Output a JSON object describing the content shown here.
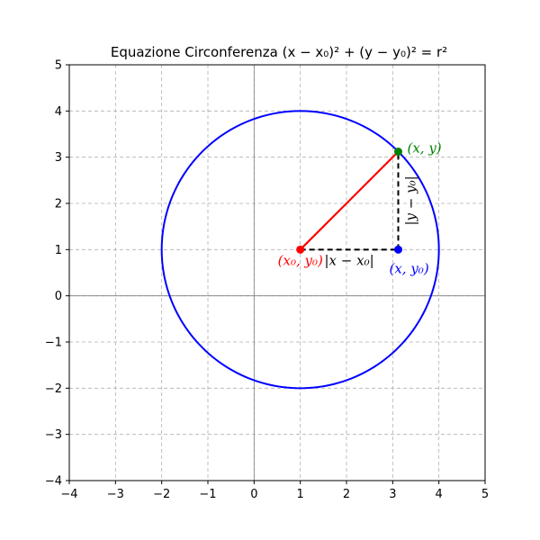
{
  "chart_data": {
    "type": "line",
    "title": "Equazione Circonferenza (x − x₀)² + (y − y₀)² = r²",
    "xlabel": "",
    "ylabel": "",
    "xlim": [
      -4,
      5
    ],
    "ylim": [
      -4,
      5
    ],
    "xticks": [
      -4,
      -3,
      -2,
      -1,
      0,
      1,
      2,
      3,
      4,
      5
    ],
    "yticks": [
      -4,
      -3,
      -2,
      -1,
      0,
      1,
      2,
      3,
      4,
      5
    ],
    "xtick_labels": [
      "−4",
      "−3",
      "−2",
      "−1",
      "0",
      "1",
      "2",
      "3",
      "4",
      "5"
    ],
    "ytick_labels": [
      "−4",
      "−3",
      "−2",
      "−1",
      "0",
      "1",
      "2",
      "3",
      "4",
      "5"
    ],
    "grid": true,
    "grid_style": "dashed",
    "circle": {
      "center": [
        1,
        1
      ],
      "radius": 3,
      "color": "#0000ff"
    },
    "center_point": {
      "x": 1,
      "y": 1,
      "label": "(x₀, y₀)",
      "color": "#ff0000"
    },
    "circle_point": {
      "x": 3.12,
      "y": 3.12,
      "label": "(x, y)",
      "color": "#008000"
    },
    "foot_point": {
      "x": 3.12,
      "y": 1,
      "label": "(x, y₀)",
      "color": "#0000ff"
    },
    "radius_segment": {
      "from": [
        1,
        1
      ],
      "to": [
        3.12,
        3.12
      ],
      "color": "#ff0000"
    },
    "horizontal_leg": {
      "from": [
        1,
        1
      ],
      "to": [
        3.12,
        1
      ],
      "label": "|x − x₀|",
      "color": "#000000",
      "style": "dashed"
    },
    "vertical_leg": {
      "from": [
        3.12,
        1
      ],
      "to": [
        3.12,
        3.12
      ],
      "label": "|y − y₀|",
      "color": "#000000",
      "style": "dashed"
    },
    "axis_lines_color": "#808080",
    "grid_color": "#b0b0b0"
  }
}
